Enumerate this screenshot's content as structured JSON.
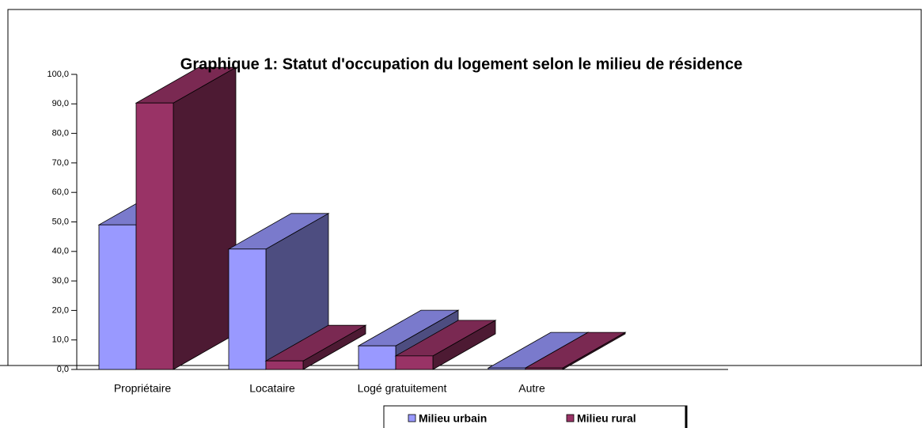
{
  "chart_data": {
    "type": "bar3d",
    "title": "Graphique 1: Statut d'occupation du logement selon le milieu de résidence",
    "categories": [
      "Propriétaire",
      "Locataire",
      "Logé gratuitement",
      "Autre"
    ],
    "series": [
      {
        "name": "Milieu urbain",
        "color": "#9999ff",
        "values": [
          49.0,
          40.8,
          8.0,
          0.5
        ]
      },
      {
        "name": "Milieu rural",
        "color": "#993366",
        "values": [
          90.3,
          2.9,
          4.6,
          0.5
        ]
      }
    ],
    "ylim": [
      0,
      100
    ],
    "yticks": [
      {
        "value": 0,
        "label": "0,0"
      },
      {
        "value": 10,
        "label": "10,0"
      },
      {
        "value": 20,
        "label": "20,0"
      },
      {
        "value": 30,
        "label": "30,0"
      },
      {
        "value": 40,
        "label": "40,0"
      },
      {
        "value": 50,
        "label": "50,0"
      },
      {
        "value": 60,
        "label": "60,0"
      },
      {
        "value": 70,
        "label": "70,0"
      },
      {
        "value": 80,
        "label": "80,0"
      },
      {
        "value": 90,
        "label": "90,0"
      },
      {
        "value": 100,
        "label": "100,0"
      }
    ],
    "legend": "bottom"
  }
}
